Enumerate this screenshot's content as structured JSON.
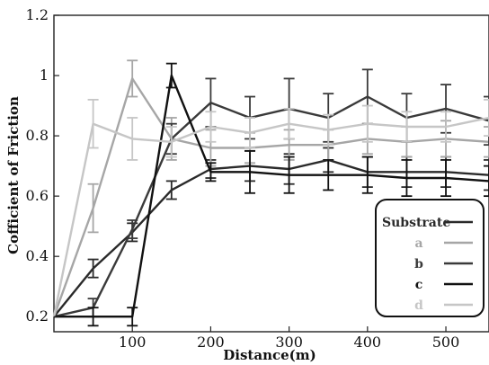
{
  "chart_data": {
    "type": "line",
    "title": "",
    "xlabel": "Distance(m)",
    "ylabel": "Cofficient of Friction",
    "xlim": [
      0,
      555
    ],
    "ylim": [
      0.15,
      1.2
    ],
    "x_ticks": [
      100,
      200,
      300,
      400,
      500
    ],
    "x_tick_labels": [
      "100",
      "200",
      "300",
      "400",
      "500"
    ],
    "y_ticks": [
      0.2,
      0.4,
      0.6,
      0.8,
      1.0,
      1.2
    ],
    "y_tick_labels": [
      "0.2",
      "0.4",
      "0.6",
      "0.8",
      "1",
      "1.2"
    ],
    "grid": false,
    "legend_position": "bottom-right",
    "error_bars": true,
    "x": [
      0,
      50,
      100,
      150,
      200,
      250,
      300,
      350,
      400,
      450,
      500,
      555
    ],
    "series": [
      {
        "name": "Substrate",
        "color": "#2a2a2a",
        "values": [
          0.2,
          0.36,
          0.48,
          0.62,
          0.69,
          0.7,
          0.69,
          0.72,
          0.68,
          0.68,
          0.68,
          0.67
        ],
        "errors": [
          0.02,
          0.03,
          0.03,
          0.03,
          0.03,
          0.05,
          0.05,
          0.04,
          0.05,
          0.05,
          0.05,
          0.05
        ]
      },
      {
        "name": "a",
        "color": "#a6a6a6",
        "values": [
          0.2,
          0.56,
          0.99,
          0.79,
          0.76,
          0.76,
          0.77,
          0.77,
          0.79,
          0.78,
          0.79,
          0.78
        ],
        "errors": [
          0.02,
          0.08,
          0.06,
          0.07,
          0.06,
          0.05,
          0.05,
          0.05,
          0.05,
          0.05,
          0.06,
          0.05
        ]
      },
      {
        "name": "b",
        "color": "#3a3a3a",
        "values": [
          0.2,
          0.23,
          0.49,
          0.79,
          0.91,
          0.86,
          0.89,
          0.86,
          0.93,
          0.86,
          0.89,
          0.85
        ],
        "errors": [
          0.02,
          0.03,
          0.03,
          0.05,
          0.08,
          0.07,
          0.1,
          0.08,
          0.09,
          0.08,
          0.08,
          0.08
        ]
      },
      {
        "name": "c",
        "color": "#111111",
        "values": [
          0.2,
          0.2,
          0.2,
          1.0,
          0.68,
          0.68,
          0.67,
          0.67,
          0.67,
          0.66,
          0.66,
          0.65
        ],
        "errors": [
          0.02,
          0.03,
          0.03,
          0.04,
          0.03,
          0.07,
          0.06,
          0.05,
          0.06,
          0.06,
          0.06,
          0.05
        ]
      },
      {
        "name": "d",
        "color": "#c6c6c6",
        "values": [
          0.2,
          0.84,
          0.79,
          0.78,
          0.83,
          0.81,
          0.84,
          0.82,
          0.84,
          0.83,
          0.83,
          0.86
        ],
        "errors": [
          0.02,
          0.08,
          0.07,
          0.05,
          0.05,
          0.05,
          0.05,
          0.05,
          0.06,
          0.05,
          0.05,
          0.06
        ]
      }
    ]
  }
}
